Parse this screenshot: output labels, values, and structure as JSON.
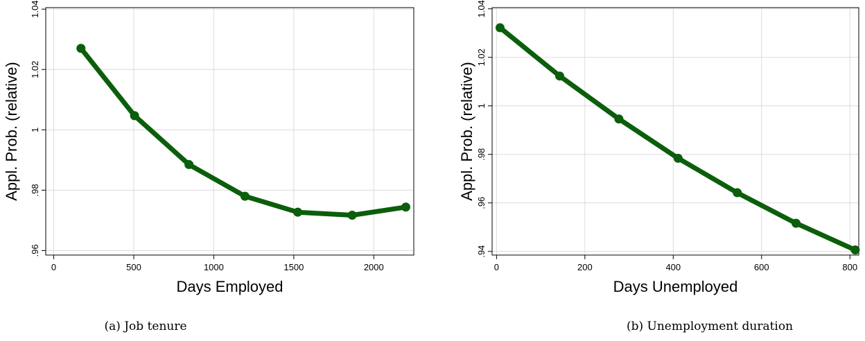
{
  "chart_data": [
    {
      "type": "line",
      "caption": "(a) Job tenure",
      "xlabel": "Days Employed",
      "ylabel": "Appl. Prob. (relative)",
      "xlim": [
        -50,
        2250
      ],
      "ylim": [
        0.9585,
        1.0405
      ],
      "xticks": [
        0,
        500,
        1000,
        1500,
        2000
      ],
      "xtick_labels": [
        "0",
        "500",
        "1000",
        "1500",
        "2000"
      ],
      "yticks": [
        0.96,
        0.98,
        1.0,
        1.02,
        1.04
      ],
      "ytick_labels": [
        ".96",
        ".98",
        "1",
        "1.02",
        "1.04"
      ],
      "grid": true,
      "color": "#0b5e0b",
      "x": [
        170,
        505,
        845,
        1195,
        1525,
        1865,
        2200
      ],
      "y": [
        1.027,
        1.0047,
        0.9885,
        0.978,
        0.9727,
        0.9717,
        0.9744
      ]
    },
    {
      "type": "line",
      "caption": "(b) Unemployment duration",
      "xlabel": "Days Unemployed",
      "ylabel": "Appl. Prob. (relative)",
      "xlim": [
        -10,
        820
      ],
      "ylim": [
        0.9385,
        1.0405
      ],
      "xticks": [
        0,
        200,
        400,
        600,
        800
      ],
      "xtick_labels": [
        "0",
        "200",
        "400",
        "600",
        "800"
      ],
      "yticks": [
        0.94,
        0.96,
        0.98,
        1.0,
        1.02,
        1.04
      ],
      "ytick_labels": [
        ".94",
        ".96",
        ".98",
        "1",
        "1.02",
        "1.04"
      ],
      "grid": true,
      "color": "#0b5e0b",
      "x": [
        8,
        143,
        277,
        411,
        545,
        678,
        812
      ],
      "y": [
        1.0322,
        1.0123,
        0.9946,
        0.9784,
        0.9642,
        0.9516,
        0.9406
      ]
    }
  ]
}
